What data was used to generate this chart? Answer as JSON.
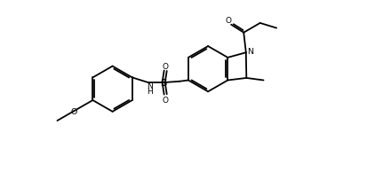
{
  "background_color": "#ffffff",
  "line_color": "#000000",
  "lw": 1.3,
  "figsize": [
    4.22,
    2.03
  ],
  "dpi": 100,
  "xlim": [
    -0.5,
    11.5
  ],
  "ylim": [
    -0.3,
    5.8
  ]
}
